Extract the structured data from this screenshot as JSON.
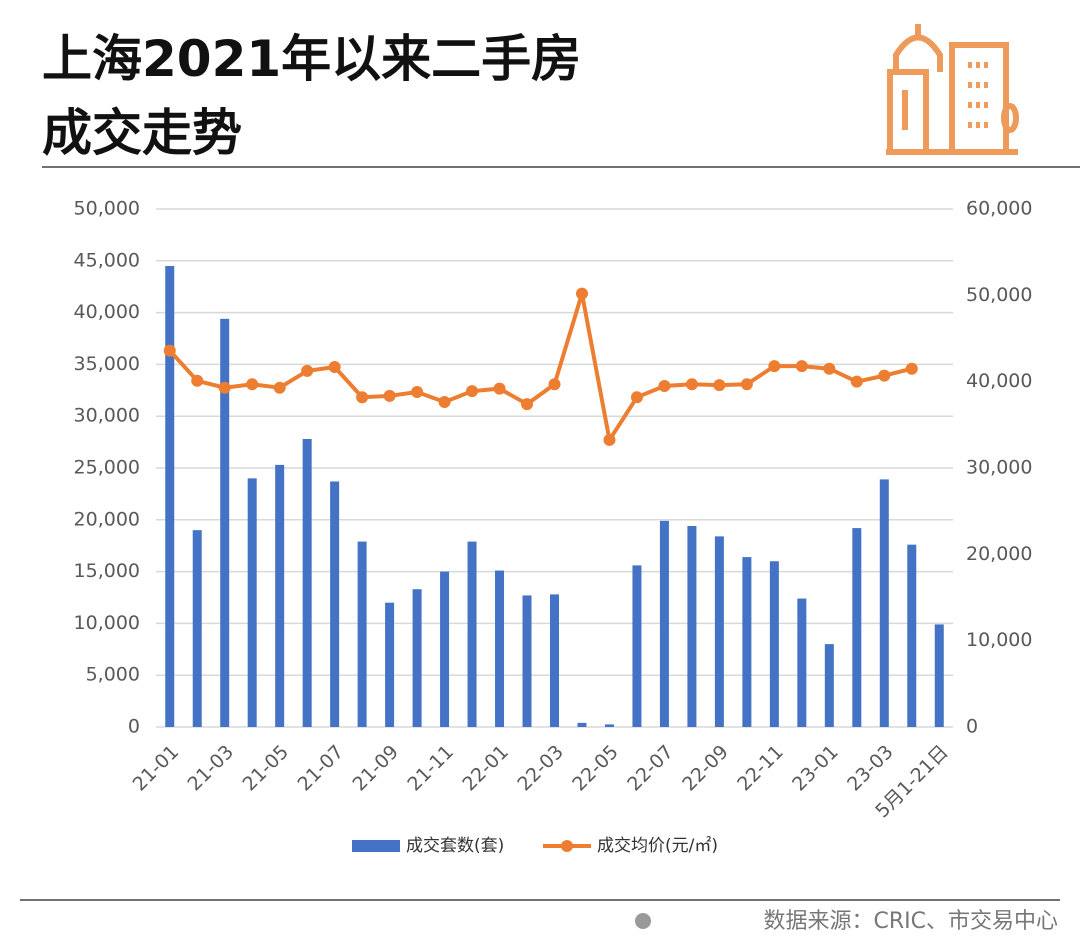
{
  "chart_data": {
    "type": "bar",
    "title": [
      "上海2021年以来二手房",
      "成交走势"
    ],
    "categories": [
      "21-01",
      null,
      "21-03",
      null,
      "21-05",
      null,
      "21-07",
      null,
      "21-09",
      null,
      "21-11",
      null,
      "22-01",
      null,
      "22-03",
      null,
      "22-05",
      null,
      "22-07",
      null,
      "22-09",
      null,
      "22-11",
      null,
      "23-01",
      null,
      "23-03",
      null,
      "5月1-21日"
    ],
    "series": [
      {
        "name": "成交套数(套)",
        "type": "bar",
        "color": "#4472c4",
        "values": [
          44500,
          19000,
          39400,
          24000,
          25300,
          27800,
          23700,
          17900,
          12000,
          13300,
          15000,
          17900,
          15100,
          12700,
          12800,
          400,
          250,
          15600,
          19900,
          19400,
          18400,
          16400,
          16000,
          12400,
          8000,
          19200,
          23900,
          17600,
          9900
        ]
      },
      {
        "name": "成交均价(元/㎡)",
        "type": "line",
        "axis": "y2",
        "color": "#ed7d31",
        "values": [
          43600,
          40100,
          39300,
          39700,
          39300,
          41250,
          41700,
          38200,
          38350,
          38800,
          37650,
          38900,
          39200,
          37400,
          39700,
          50200,
          33250,
          38200,
          39500,
          39700,
          39600,
          39700,
          41800,
          41800,
          41500,
          40000,
          40700,
          41500,
          null
        ]
      }
    ],
    "ylim": [
      0,
      50000
    ],
    "yticks": [
      0,
      {
        "value": 5000,
        "label": "5,000"
      },
      {
        "value": 10000,
        "label": "10,000"
      },
      {
        "value": 15000,
        "label": "15,000"
      },
      {
        "value": 20000,
        "label": "20,000"
      },
      {
        "value": 25000,
        "label": "25,000"
      },
      {
        "value": 30000,
        "label": "30,000"
      },
      {
        "value": 35000,
        "label": "35,000"
      },
      {
        "value": 40000,
        "label": "40,000"
      },
      {
        "value": 45000,
        "label": "45,000"
      },
      {
        "value": 50000,
        "label": "50,000"
      }
    ],
    "y2lim": [
      0,
      60000
    ],
    "y2ticks": [
      0,
      {
        "value": 10000,
        "label": "10,000"
      },
      {
        "value": 20000,
        "label": "20,000"
      },
      {
        "value": 30000,
        "label": "30,000"
      },
      {
        "value": 40000,
        "label": "40,000"
      },
      {
        "value": 50000,
        "label": "50,000"
      },
      {
        "value": 60000,
        "label": "60,000"
      }
    ],
    "grid": true,
    "legend": "bottom",
    "source": "数据来源：CRIC、市交易中心"
  }
}
